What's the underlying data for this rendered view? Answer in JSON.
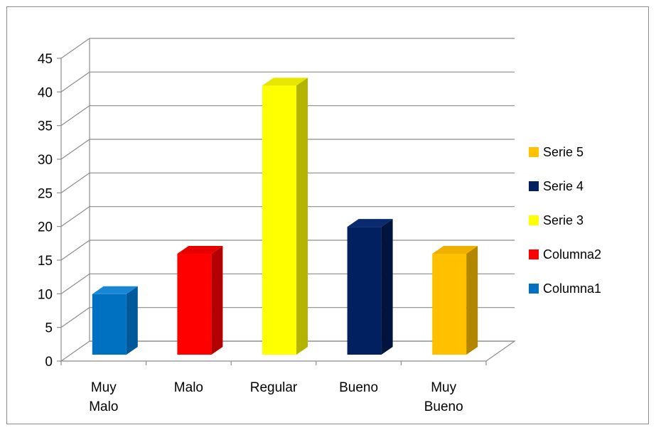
{
  "chart_data": {
    "type": "bar",
    "categories": [
      "Muy Malo",
      "Malo",
      "Regular",
      "Bueno",
      "Muy Bueno"
    ],
    "category_lines": [
      [
        "Muy",
        "Malo"
      ],
      [
        "Malo"
      ],
      [
        "Regular"
      ],
      [
        "Bueno"
      ],
      [
        "Muy",
        "Bueno"
      ]
    ],
    "values": [
      9,
      15,
      40,
      19,
      15
    ],
    "bar_colors": [
      "#0070c0",
      "#ff0000",
      "#ffff00",
      "#002060",
      "#ffc000"
    ],
    "side_colors": [
      "#005a9a",
      "#b30000",
      "#b3b300",
      "#00143d",
      "#b38600"
    ],
    "top_colors": [
      "#1a86d6",
      "#e60000",
      "#e6e600",
      "#0a2a70",
      "#f0b000"
    ],
    "ylim": [
      0,
      45
    ],
    "yticks": [
      0,
      5,
      10,
      15,
      20,
      25,
      30,
      35,
      40,
      45
    ],
    "grid": true,
    "style": "3d-column",
    "legend": {
      "position": "right",
      "items": [
        {
          "label": "Serie 5",
          "color": "#ffc000"
        },
        {
          "label": "Serie 4",
          "color": "#002060"
        },
        {
          "label": "Serie 3",
          "color": "#ffff00"
        },
        {
          "label": "Columna2",
          "color": "#ff0000"
        },
        {
          "label": "Columna1",
          "color": "#0070c0"
        }
      ]
    }
  }
}
